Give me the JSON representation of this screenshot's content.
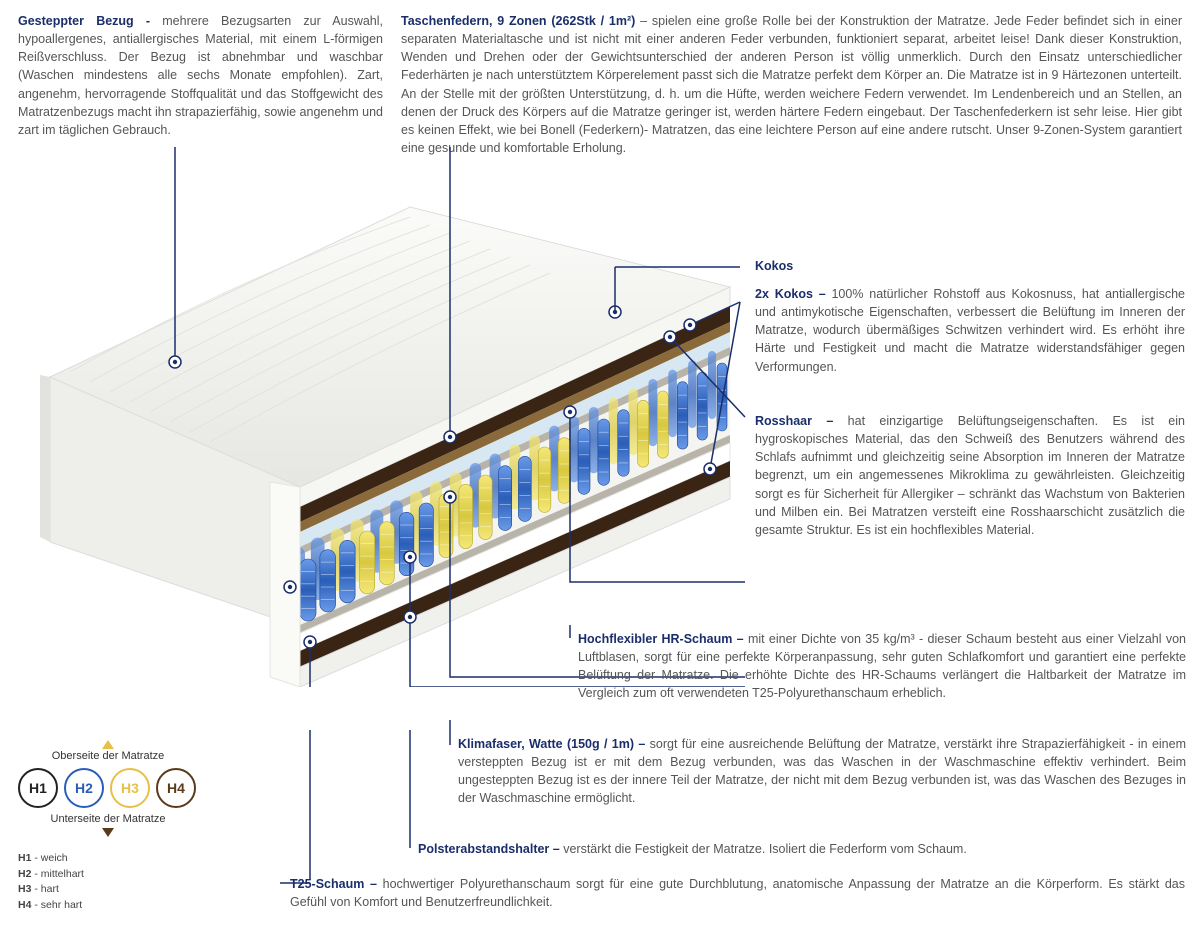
{
  "colors": {
    "heading": "#1a2e6b",
    "text": "#555555",
    "line": "#1a2e6b",
    "cover": "#f4f4f2",
    "coverShade": "#e6e6e2",
    "kokos": "#3a2414",
    "rosshaar": "#8a6a3a",
    "foam": "#ffffff",
    "hrfoam": "#d8e8f2",
    "felt": "#b8b4aa",
    "springBlue1": "#2a5eb8",
    "springBlue2": "#4a7ed8",
    "springYellow1": "#d8c840",
    "springYellow2": "#f0e060"
  },
  "top": {
    "left": {
      "title": "Gesteppter Bezug - ",
      "body": "mehrere Bezugsarten zur Auswahl, hypoallergenes, antiallergisches Material, mit einem L-förmigen Reißverschluss. Der Bezug ist abnehmbar und waschbar (Waschen mindestens alle sechs Monate empfohlen). Zart, angenehm, hervorragende Stoffqualität und das Stoffgewicht des Matratzenbezugs macht ihn strapazierfähig, sowie angenehm und zart im täglichen Gebrauch."
    },
    "right": {
      "title": "Taschenfedern, 9 Zonen (262Stk / 1m²) ",
      "body": "–  spielen eine große Rolle bei der Konstruktion der Matratze. Jede Feder befindet sich in einer separaten Materialtasche und ist nicht mit einer anderen Feder verbunden, funktioniert separat, arbeitet leise! Dank dieser Konstruktion, Wenden und Drehen oder der Gewichtsunterschied der anderen Person ist völlig unmerklich. Durch den Einsatz unterschiedlicher Federhärten je nach unterstütztem Körperelement passt sich die Matratze perfekt dem Körper an. Die Matratze ist in 9 Härtezonen unterteilt. An der Stelle mit der größten Unterstützung, d. h. um die Hüfte, werden weichere Federn verwendet. Im Lendenbereich und an Stellen, an denen der Druck des Körpers auf die Matratze geringer ist, werden härtere Federn eingebaut. Der Taschenfederkern ist sehr leise. Hier gibt es keinen Effekt, wie bei Bonell (Federkern)- Matratzen, das eine leichtere Person auf eine andere rutscht. Unser 9-Zonen-System garantiert eine gesunde und komfortable Erholung."
    }
  },
  "callouts": {
    "kokos_label": "Kokos",
    "kokos2": {
      "title": "2x Kokos – ",
      "body": "100% natürlicher Rohstoff aus Kokosnuss, hat antiallergische und antimykotische Eigenschaften, verbessert die Belüftung im Inneren der Matratze, wodurch übermäßiges Schwitzen verhindert wird. Es erhöht ihre Härte und Festigkeit und macht die Matratze widerstandsfähiger gegen Verformungen."
    },
    "rosshaar": {
      "title": "Rosshaar – ",
      "body": "hat einzigartige Belüftungseigenschaften. Es ist ein hygroskopisches Material, das den Schweiß des Benutzers während des Schlafs aufnimmt und gleichzeitig seine Absorption im Inneren der Matratze begrenzt, um ein angemessenes Mikroklima zu gewährleisten. Gleichzeitig sorgt es für Sicherheit für Allergiker – schränkt das Wachstum von Bakterien und Milben ein. Bei Matratzen versteift eine Rosshaarschicht zusätzlich die gesamte Struktur. Es ist ein hochflexibles Material."
    },
    "hrfoam": {
      "title": "Hochflexibler HR-Schaum – ",
      "body": "mit einer Dichte von 35 kg/m³ - dieser Schaum besteht aus einer Vielzahl von Luftblasen, sorgt für eine perfekte Körperanpassung, sehr guten Schlafkomfort und garantiert eine perfekte Belüftung der Matratze. Die erhöhte Dichte des HR-Schaums verlängert die Haltbarkeit der Matratze im Vergleich zum oft verwendeten T25-Polyurethanschaum erheblich."
    },
    "klima": {
      "title": "Klimafaser, Watte (150g / 1m) – ",
      "body": "sorgt für eine ausreichende Belüftung der Matratze, verstärkt ihre Strapazierfähigkeit - in einem versteppten Bezug ist er mit dem Bezug verbunden, was das Waschen in der Waschmaschine effektiv verhindert. Beim ungesteppten Bezug ist es der innere Teil der Matratze, der nicht mit dem Bezug verbunden ist, was das Waschen des Bezuges in der Waschmaschine ermöglicht."
    },
    "polster": {
      "title": "Polsterabstandshalter – ",
      "body": "verstärkt die Festigkeit der Matratze. Isoliert die Federform vom Schaum."
    },
    "t25": {
      "title": "T25-Schaum – ",
      "body": "hochwertiger Polyurethanschaum sorgt für eine gute Durchblutung, anatomische Anpassung der Matratze an die Körperform. Es stärkt das Gefühl von Komfort und Benutzerfreundlichkeit."
    }
  },
  "legend": {
    "topLabel": "Oberseite der Matratze",
    "botLabel": "Unterseite der Matratze",
    "circles": [
      {
        "label": "H1",
        "color": "#222222"
      },
      {
        "label": "H2",
        "color": "#2a5eb8"
      },
      {
        "label": "H3",
        "color": "#e6c048"
      },
      {
        "label": "H4",
        "color": "#5a3a1a"
      }
    ],
    "keys": [
      {
        "k": "H1",
        "v": " - weich"
      },
      {
        "k": "H2",
        "v": " - mittelhart"
      },
      {
        "k": "H3",
        "v": " - hart"
      },
      {
        "k": "H4",
        "v": " - sehr hart"
      }
    ]
  }
}
